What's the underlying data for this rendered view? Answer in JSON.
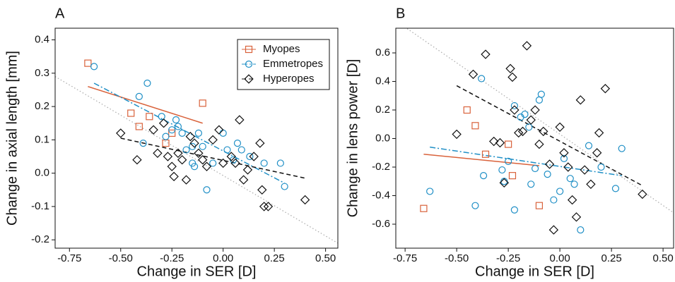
{
  "chart_data": [
    {
      "type": "scatter",
      "title": "A",
      "xlabel": "Change in SER [D]",
      "ylabel": "Change in axial length [mm]",
      "xlim": [
        -0.82,
        0.56
      ],
      "ylim": [
        -0.225,
        0.435
      ],
      "xticks": [
        -0.75,
        {
          "value": -0.5,
          "label": "-0.50"
        },
        -0.25,
        {
          "value": 0,
          "label": "0.00"
        },
        0.25,
        {
          "value": 0.5,
          "label": "0.50"
        }
      ],
      "yticks": [
        -0.2,
        -0.1,
        {
          "value": 0,
          "label": "0.0"
        },
        0.1,
        0.2,
        0.3,
        0.4
      ],
      "legend": "top-right",
      "reference_line": {
        "color": "#aaaaaa",
        "x": [
          -0.82,
          0.56
        ],
        "values": [
          0.29,
          -0.21
        ]
      },
      "series": [
        {
          "name": "Myopes",
          "color": "#d9623b",
          "marker": "square",
          "dash": "solid",
          "x": [
            -0.66,
            -0.45,
            -0.41,
            -0.36,
            -0.28,
            -0.25,
            -0.1
          ],
          "values": [
            0.33,
            0.18,
            0.14,
            0.17,
            0.09,
            0.12,
            0.21
          ],
          "fit": {
            "x": [
              -0.66,
              -0.1
            ],
            "values": [
              0.26,
              0.15
            ]
          }
        },
        {
          "name": "Emmetropes",
          "color": "#1f8fc6",
          "marker": "circle",
          "dash": "dashdot",
          "x": [
            -0.63,
            -0.37,
            -0.41,
            -0.39,
            -0.3,
            -0.28,
            -0.23,
            -0.22,
            -0.2,
            -0.18,
            -0.15,
            -0.14,
            -0.12,
            -0.1,
            -0.08,
            -0.05,
            0.0,
            0.02,
            0.05,
            0.07,
            0.09,
            0.13,
            0.2,
            0.28,
            0.3,
            -0.25,
            -0.15
          ],
          "values": [
            0.32,
            0.27,
            0.23,
            0.09,
            0.17,
            0.11,
            0.16,
            0.14,
            0.12,
            0.07,
            0.03,
            0.02,
            0.12,
            0.08,
            -0.05,
            0.03,
            0.12,
            0.07,
            0.04,
            0.09,
            0.07,
            0.05,
            0.03,
            0.03,
            -0.04,
            0.13,
            0.08
          ],
          "fit": {
            "x": [
              -0.63,
              0.3
            ],
            "values": [
              0.27,
              -0.03
            ]
          }
        },
        {
          "name": "Hyperopes",
          "color": "#111111",
          "marker": "diamond",
          "dash": "dashed",
          "x": [
            -0.5,
            -0.42,
            -0.34,
            -0.32,
            -0.29,
            -0.27,
            -0.25,
            -0.24,
            -0.22,
            -0.2,
            -0.18,
            -0.16,
            -0.14,
            -0.12,
            -0.1,
            -0.08,
            -0.05,
            -0.02,
            0.0,
            0.04,
            0.06,
            0.08,
            0.1,
            0.12,
            0.15,
            0.18,
            0.2,
            0.22,
            0.19,
            0.4
          ],
          "values": [
            0.12,
            0.04,
            0.13,
            0.06,
            0.15,
            0.05,
            0.02,
            -0.01,
            0.06,
            0.04,
            -0.02,
            0.11,
            0.09,
            0.06,
            0.04,
            0.02,
            0.1,
            0.13,
            0.03,
            0.05,
            0.03,
            0.16,
            -0.02,
            0.01,
            0.05,
            0.09,
            -0.1,
            -0.1,
            -0.05,
            -0.08
          ],
          "fit": {
            "x": [
              -0.5,
              0.4
            ],
            "values": [
              0.105,
              -0.015
            ]
          }
        }
      ]
    },
    {
      "type": "scatter",
      "title": "B",
      "xlabel": "Change in SER [D]",
      "ylabel": "Change in lens power [D]",
      "xlim": [
        -0.795,
        0.551
      ],
      "ylim": [
        -0.768,
        0.773
      ],
      "xticks": [
        -0.75,
        {
          "value": -0.5,
          "label": "-0.50"
        },
        -0.25,
        {
          "value": 0,
          "label": "0.00"
        },
        0.25,
        {
          "value": 0.5,
          "label": "0.50"
        }
      ],
      "yticks": [
        -0.6,
        -0.4,
        -0.2,
        {
          "value": 0,
          "label": "0.0"
        },
        0.2,
        0.4,
        0.6
      ],
      "reference_line": {
        "color": "#aaaaaa",
        "x": [
          -0.74,
          0.551
        ],
        "values": [
          0.77,
          -0.52
        ]
      },
      "series": [
        {
          "color": "#d9623b",
          "marker": "square",
          "dash": "solid",
          "x": [
            -0.66,
            -0.45,
            -0.41,
            -0.36,
            -0.25,
            -0.23,
            -0.1
          ],
          "values": [
            -0.49,
            0.2,
            0.09,
            -0.11,
            -0.04,
            -0.26,
            -0.47
          ],
          "fit": {
            "x": [
              -0.66,
              -0.1
            ],
            "values": [
              -0.11,
              -0.19
            ]
          }
        },
        {
          "color": "#1f8fc6",
          "marker": "circle",
          "dash": "dashdot",
          "x": [
            -0.63,
            -0.38,
            -0.41,
            -0.37,
            -0.28,
            -0.27,
            -0.22,
            -0.22,
            -0.19,
            -0.17,
            -0.14,
            -0.12,
            -0.1,
            -0.09,
            -0.06,
            -0.03,
            0.0,
            0.02,
            0.05,
            0.07,
            0.1,
            0.14,
            0.2,
            0.27,
            0.3,
            -0.25,
            -0.15
          ],
          "values": [
            -0.37,
            0.42,
            -0.47,
            -0.26,
            -0.22,
            -0.3,
            0.23,
            -0.5,
            0.15,
            0.17,
            -0.32,
            -0.21,
            0.27,
            0.31,
            -0.25,
            -0.43,
            -0.37,
            -0.14,
            -0.28,
            -0.32,
            -0.64,
            -0.05,
            -0.2,
            -0.35,
            -0.07,
            -0.16,
            0.08
          ],
          "fit": {
            "x": [
              -0.63,
              0.3
            ],
            "values": [
              -0.06,
              -0.26
            ]
          }
        },
        {
          "color": "#111111",
          "marker": "diamond",
          "dash": "dashed",
          "x": [
            -0.5,
            -0.42,
            -0.36,
            -0.32,
            -0.29,
            -0.27,
            -0.24,
            -0.23,
            -0.22,
            -0.2,
            -0.18,
            -0.16,
            -0.14,
            -0.12,
            -0.1,
            -0.08,
            -0.05,
            -0.03,
            0.0,
            0.02,
            0.04,
            0.06,
            0.08,
            0.1,
            0.12,
            0.15,
            0.18,
            0.19,
            0.22,
            0.4
          ],
          "values": [
            0.03,
            0.45,
            0.59,
            -0.02,
            -0.03,
            -0.31,
            0.49,
            0.43,
            0.2,
            0.04,
            0.05,
            0.65,
            0.13,
            0.2,
            -0.04,
            0.05,
            -0.18,
            -0.64,
            0.08,
            -0.1,
            -0.2,
            -0.43,
            -0.55,
            0.27,
            -0.22,
            -0.32,
            -0.1,
            0.04,
            0.35,
            -0.39
          ],
          "fit": {
            "x": [
              -0.5,
              0.4
            ],
            "values": [
              0.37,
              -0.33
            ]
          }
        }
      ]
    }
  ]
}
